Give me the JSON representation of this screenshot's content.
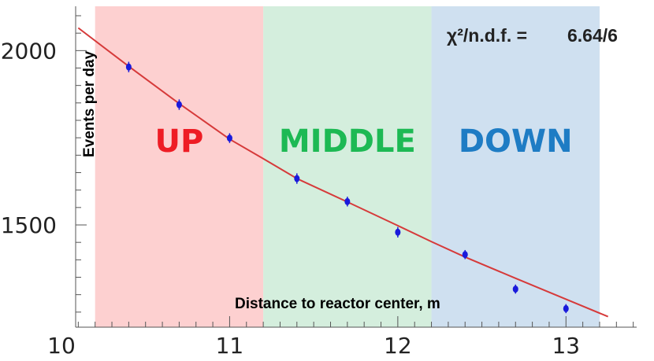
{
  "chart_data": {
    "type": "scatter",
    "xlabel": "Distance to reactor center, m",
    "ylabel": "Events per day",
    "xlim": [
      10,
      13.5
    ],
    "ylim": [
      1200,
      2100
    ],
    "x_ticks": [
      10,
      11,
      12,
      13
    ],
    "y_ticks": [
      1500,
      2000
    ],
    "regions": [
      {
        "label": "UP",
        "x_start": 10.2,
        "x_end": 11.2,
        "fill": "#fdd0d0",
        "label_color": "#ee1c24"
      },
      {
        "label": "MIDDLE",
        "x_start": 11.2,
        "x_end": 12.2,
        "fill": "#d4eedd",
        "label_color": "#1db954"
      },
      {
        "label": "DOWN",
        "x_start": 12.2,
        "x_end": 13.2,
        "fill": "#cfe0f0",
        "label_color": "#1e7cc4"
      }
    ],
    "points": [
      {
        "x": 10.4,
        "y": 1953,
        "err": 15
      },
      {
        "x": 10.7,
        "y": 1845,
        "err": 15
      },
      {
        "x": 11.0,
        "y": 1749,
        "err": 14
      },
      {
        "x": 11.4,
        "y": 1633,
        "err": 15
      },
      {
        "x": 11.7,
        "y": 1567,
        "err": 14
      },
      {
        "x": 12.0,
        "y": 1479,
        "err": 15
      },
      {
        "x": 12.4,
        "y": 1415,
        "err": 13
      },
      {
        "x": 12.7,
        "y": 1316,
        "err": 13
      },
      {
        "x": 13.0,
        "y": 1260,
        "err": 13
      }
    ],
    "fit_curve": {
      "color": "#d63a3a",
      "x": [
        10.1,
        10.4,
        10.7,
        11.0,
        11.2,
        11.4,
        11.7,
        12.0,
        12.2,
        12.4,
        12.7,
        13.0,
        13.25
      ],
      "y": [
        2065,
        1955,
        1848,
        1746,
        1690,
        1633,
        1566,
        1498,
        1452,
        1408,
        1347,
        1287,
        1237
      ]
    },
    "annotation": {
      "label": "χ²/n.d.f. =",
      "value": "6.64/6"
    },
    "point_color": "#1a1adb",
    "grid": false
  }
}
